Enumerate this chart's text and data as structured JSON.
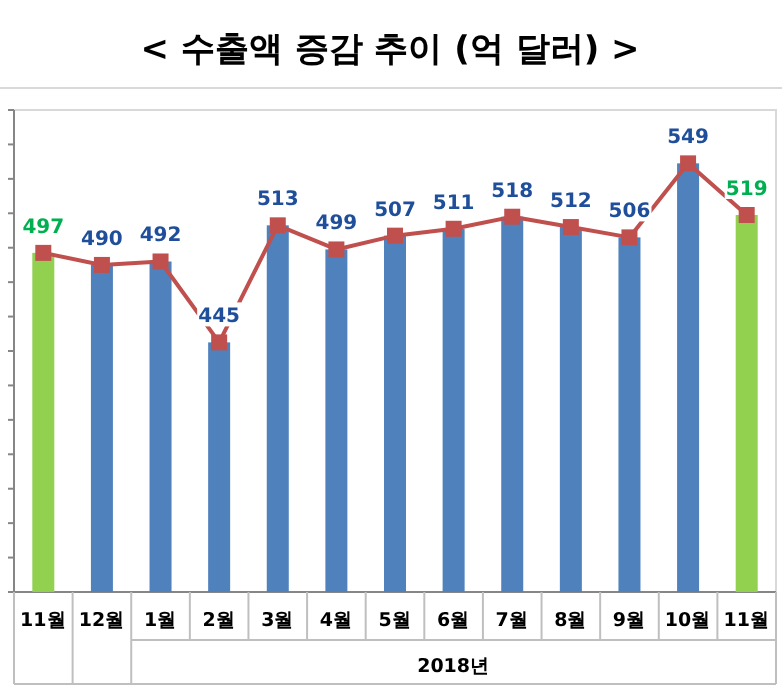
{
  "chart_data": {
    "type": "bar",
    "title": "< 수출액 증감 추이 (억 달러) >",
    "xlabel": "2018년",
    "categories": [
      "11월",
      "12월",
      "1월",
      "2월",
      "3월",
      "4월",
      "5월",
      "6월",
      "7월",
      "8월",
      "9월",
      "10월",
      "11월"
    ],
    "ylim": [
      300,
      580
    ],
    "yticks": [
      {
        "value": 300,
        "label": null
      },
      {
        "value": 320,
        "label": null
      },
      {
        "value": 340,
        "label": null
      },
      {
        "value": 360,
        "label": null
      },
      {
        "value": 380,
        "label": null
      },
      {
        "value": 400,
        "label": null
      },
      {
        "value": 420,
        "label": null
      },
      {
        "value": 440,
        "label": null
      },
      {
        "value": 460,
        "label": null
      },
      {
        "value": 480,
        "label": null
      },
      {
        "value": 500,
        "label": null
      },
      {
        "value": 520,
        "label": null
      },
      {
        "value": 540,
        "label": null
      },
      {
        "value": 560,
        "label": null
      },
      {
        "value": 580,
        "label": null
      }
    ],
    "series": [
      {
        "colors": [
          "#92d050",
          "#4f81bd",
          "#4f81bd",
          "#4f81bd",
          "#4f81bd",
          "#4f81bd",
          "#4f81bd",
          "#4f81bd",
          "#4f81bd",
          "#4f81bd",
          "#4f81bd",
          "#4f81bd",
          "#92d050"
        ],
        "values": [
          497,
          490,
          492,
          445,
          513,
          499,
          507,
          511,
          518,
          512,
          506,
          549,
          519
        ]
      },
      {
        "type": "line",
        "color": "#c0504d",
        "marker": "square",
        "values": [
          497,
          490,
          492,
          445,
          513,
          499,
          507,
          511,
          518,
          512,
          506,
          549,
          519
        ],
        "value_labels": [
          "497",
          "490",
          "492",
          "445",
          "513",
          "499",
          "507",
          "511",
          "518",
          "512",
          "506",
          "549",
          "519"
        ]
      }
    ]
  }
}
